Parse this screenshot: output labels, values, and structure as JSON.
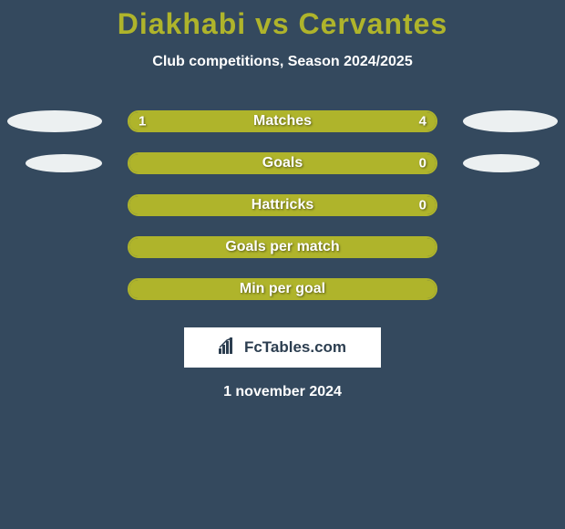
{
  "title_color": "#afb42b",
  "player1": "Diakhabi",
  "player2": "Cervantes",
  "subtitle": "Club competitions, Season 2024/2025",
  "avatar_color": "#ecf0f1",
  "bar_color": "#afb42b",
  "background_color": "#34495e",
  "rows": [
    {
      "label": "Matches",
      "left": "1",
      "right": "4",
      "left_pct": 20,
      "right_pct": 80,
      "show_avatars": "lg"
    },
    {
      "label": "Goals",
      "left": "",
      "right": "0",
      "left_pct": 100,
      "right_pct": 0,
      "show_avatars": "sm"
    },
    {
      "label": "Hattricks",
      "left": "",
      "right": "0",
      "left_pct": 100,
      "right_pct": 0,
      "show_avatars": "none"
    },
    {
      "label": "Goals per match",
      "left": "",
      "right": "",
      "left_pct": 100,
      "right_pct": 0,
      "show_avatars": "none"
    },
    {
      "label": "Min per goal",
      "left": "",
      "right": "",
      "left_pct": 100,
      "right_pct": 0,
      "show_avatars": "none"
    }
  ],
  "brand": "FcTables.com",
  "date": "1 november 2024"
}
